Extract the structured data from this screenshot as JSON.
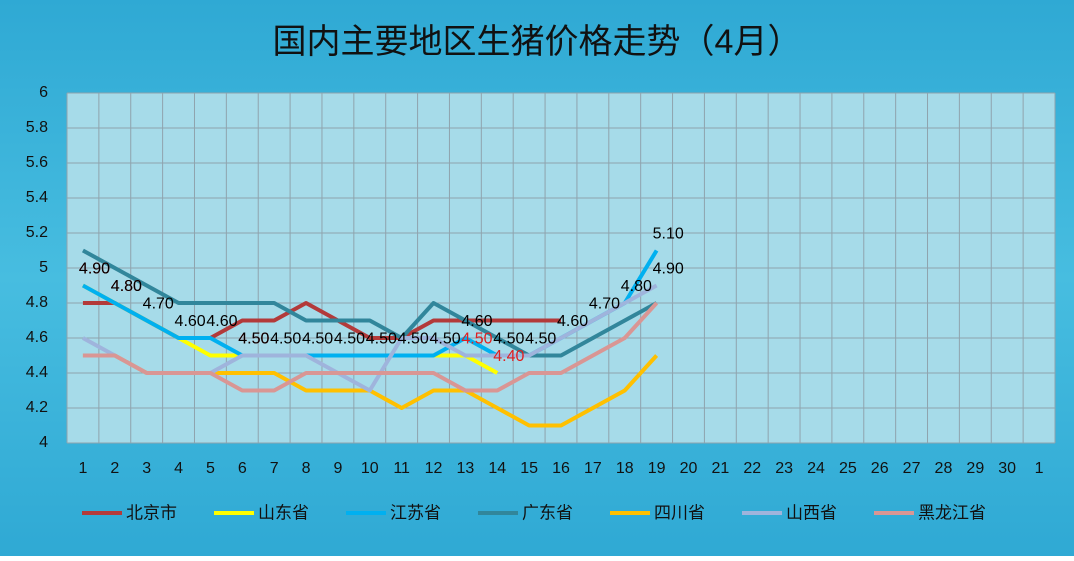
{
  "chart_data": {
    "type": "line",
    "title": "国内主要地区生猪价格走势（4月）",
    "categories": [
      "1",
      "2",
      "3",
      "4",
      "5",
      "6",
      "7",
      "8",
      "9",
      "10",
      "11",
      "12",
      "13",
      "14",
      "15",
      "16",
      "17",
      "18",
      "19",
      "20",
      "21",
      "22",
      "23",
      "24",
      "25",
      "26",
      "27",
      "28",
      "29",
      "30",
      "1"
    ],
    "ylim": [
      4,
      6
    ],
    "yticks": [
      4,
      4.2,
      4.4,
      4.6,
      4.8,
      5,
      5.2,
      5.4,
      5.6,
      5.8,
      6
    ],
    "grid": true,
    "legend": "bottom",
    "series": [
      {
        "name": "北京市",
        "color": "#b33a3a",
        "values": [
          4.8,
          4.8,
          4.7,
          4.6,
          4.6,
          4.7,
          4.7,
          4.8,
          4.7,
          4.6,
          4.6,
          4.7,
          4.7,
          4.7,
          4.7,
          4.7,
          null,
          null,
          null,
          null,
          null,
          null,
          null,
          null,
          null,
          null,
          null,
          null,
          null,
          null,
          null
        ]
      },
      {
        "name": "山东省",
        "color": "#ffff00",
        "label_color": "#e02020",
        "values": [
          4.9,
          4.8,
          4.7,
          4.6,
          4.5,
          4.5,
          4.5,
          4.5,
          4.5,
          4.5,
          4.5,
          4.5,
          4.5,
          4.4,
          null,
          null,
          null,
          null,
          null,
          null,
          null,
          null,
          null,
          null,
          null,
          null,
          null,
          null,
          null,
          null,
          null
        ],
        "value_labels": [
          "4.90",
          "4.80",
          null,
          null,
          null,
          "4.50",
          null,
          null,
          null,
          null,
          null,
          null,
          "4.50",
          "4.40",
          null,
          null,
          null,
          null,
          null,
          null,
          null,
          null,
          null,
          null,
          null,
          null,
          null,
          null,
          null,
          null,
          null
        ]
      },
      {
        "name": "江苏省",
        "color": "#00b0f0",
        "label_color": "#000000",
        "values": [
          4.9,
          4.8,
          4.7,
          4.6,
          4.6,
          4.5,
          4.5,
          4.5,
          4.5,
          4.5,
          4.5,
          4.5,
          4.6,
          4.5,
          4.5,
          4.6,
          4.7,
          4.8,
          5.1,
          null,
          null,
          null,
          null,
          null,
          null,
          null,
          null,
          null,
          null,
          null,
          null
        ],
        "value_labels": [
          "4.90",
          "4.80",
          "4.70",
          "4.60",
          "4.60",
          "4.50",
          "4.50",
          "4.50",
          "4.50",
          "4.50",
          "4.50",
          "4.50",
          "4.60",
          "4.50",
          "4.50",
          "4.60",
          "4.70",
          "4.80",
          "5.10",
          null,
          null,
          null,
          null,
          null,
          null,
          null,
          null,
          null,
          null,
          null,
          null
        ]
      },
      {
        "name": "广东省",
        "color": "#31869b",
        "values": [
          5.1,
          5.0,
          4.9,
          4.8,
          4.8,
          4.8,
          4.8,
          4.7,
          4.7,
          4.7,
          4.6,
          4.8,
          4.7,
          4.6,
          4.5,
          4.5,
          4.6,
          4.7,
          4.8,
          null,
          null,
          null,
          null,
          null,
          null,
          null,
          null,
          null,
          null,
          null,
          null
        ]
      },
      {
        "name": "四川省",
        "color": "#ffc000",
        "values": [
          4.5,
          4.5,
          4.4,
          4.4,
          4.4,
          4.4,
          4.4,
          4.3,
          4.3,
          4.3,
          4.2,
          4.3,
          4.3,
          4.2,
          4.1,
          4.1,
          4.2,
          4.3,
          4.5,
          null,
          null,
          null,
          null,
          null,
          null,
          null,
          null,
          null,
          null,
          null,
          null
        ]
      },
      {
        "name": "山西省",
        "color": "#9fb4dc",
        "label_color": "#000000",
        "values": [
          4.6,
          4.5,
          4.4,
          4.4,
          4.4,
          4.5,
          4.5,
          4.5,
          4.4,
          4.3,
          4.6,
          4.6,
          4.5,
          4.5,
          4.5,
          4.6,
          4.7,
          4.8,
          4.9,
          null,
          null,
          null,
          null,
          null,
          null,
          null,
          null,
          null,
          null,
          null,
          null
        ],
        "value_labels": [
          null,
          null,
          null,
          null,
          null,
          null,
          null,
          null,
          null,
          null,
          null,
          null,
          null,
          null,
          null,
          null,
          null,
          null,
          "4.90",
          null,
          null,
          null,
          null,
          null,
          null,
          null,
          null,
          null,
          null,
          null,
          null
        ]
      },
      {
        "name": "黑龙江省",
        "color": "#d99694",
        "values": [
          4.5,
          4.5,
          4.4,
          4.4,
          4.4,
          4.3,
          4.3,
          4.4,
          4.4,
          4.4,
          4.4,
          4.4,
          4.3,
          4.3,
          4.4,
          4.4,
          4.5,
          4.6,
          4.8,
          null,
          null,
          null,
          null,
          null,
          null,
          null,
          null,
          null,
          null,
          null,
          null
        ]
      }
    ]
  }
}
